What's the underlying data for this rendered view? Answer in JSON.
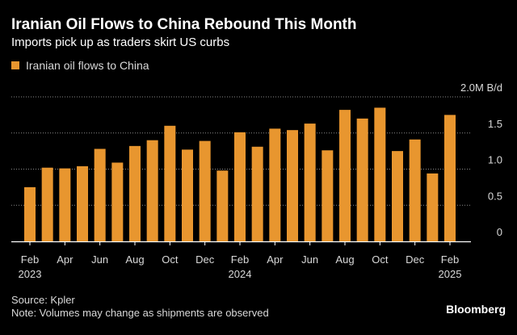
{
  "chart_data": {
    "type": "bar",
    "title": "Iranian Oil Flows to China Rebound This Month",
    "subtitle": "Imports pick up as traders skirt US curbs",
    "legend": [
      "Iranian oil flows to China"
    ],
    "legend_position": "top-left",
    "unit_label": "2.0M B/d",
    "y_ticks": [
      "2.0M B/d",
      "1.5",
      "1.0",
      "0.5",
      "0"
    ],
    "ylim": [
      0,
      2.0
    ],
    "grid": true,
    "categories": [
      "Feb 2023",
      "Mar 2023",
      "Apr 2023",
      "May 2023",
      "Jun 2023",
      "Jul 2023",
      "Aug 2023",
      "Sep 2023",
      "Oct 2023",
      "Nov 2023",
      "Dec 2023",
      "Jan 2024",
      "Feb 2024",
      "Mar 2024",
      "Apr 2024",
      "May 2024",
      "Jun 2024",
      "Jul 2024",
      "Aug 2024",
      "Sep 2024",
      "Oct 2024",
      "Nov 2024",
      "Dec 2024",
      "Jan 2025",
      "Feb 2025"
    ],
    "x_tick_labels": [
      {
        "month": "Feb",
        "year": "2023"
      },
      {
        "month": "",
        "year": ""
      },
      {
        "month": "Apr",
        "year": ""
      },
      {
        "month": "",
        "year": ""
      },
      {
        "month": "Jun",
        "year": ""
      },
      {
        "month": "",
        "year": ""
      },
      {
        "month": "Aug",
        "year": ""
      },
      {
        "month": "",
        "year": ""
      },
      {
        "month": "Oct",
        "year": ""
      },
      {
        "month": "",
        "year": ""
      },
      {
        "month": "Dec",
        "year": ""
      },
      {
        "month": "",
        "year": ""
      },
      {
        "month": "Feb",
        "year": "2024"
      },
      {
        "month": "",
        "year": ""
      },
      {
        "month": "Apr",
        "year": ""
      },
      {
        "month": "",
        "year": ""
      },
      {
        "month": "Jun",
        "year": ""
      },
      {
        "month": "",
        "year": ""
      },
      {
        "month": "Aug",
        "year": ""
      },
      {
        "month": "",
        "year": ""
      },
      {
        "month": "Oct",
        "year": ""
      },
      {
        "month": "",
        "year": ""
      },
      {
        "month": "Dec",
        "year": ""
      },
      {
        "month": "",
        "year": ""
      },
      {
        "month": "Feb",
        "year": "2025"
      }
    ],
    "series": [
      {
        "name": "Iranian oil flows to China",
        "values": [
          0.75,
          1.02,
          1.01,
          1.04,
          1.28,
          1.09,
          1.32,
          1.4,
          1.6,
          1.27,
          1.39,
          0.98,
          1.51,
          1.31,
          1.56,
          1.54,
          1.63,
          1.26,
          1.82,
          1.7,
          1.85,
          1.25,
          1.41,
          0.94,
          1.75
        ],
        "color": "#e8962f"
      }
    ]
  },
  "colors": {
    "background": "#000000",
    "bar": "#e8962f",
    "grid": "#8a8a8a",
    "axis": "#ffffff",
    "text": "#ffffff",
    "muted_text": "#d9d9d9"
  },
  "footer": {
    "source": "Source: Kpler",
    "note": "Note: Volumes may change as shipments are observed",
    "brand": "Bloomberg"
  }
}
